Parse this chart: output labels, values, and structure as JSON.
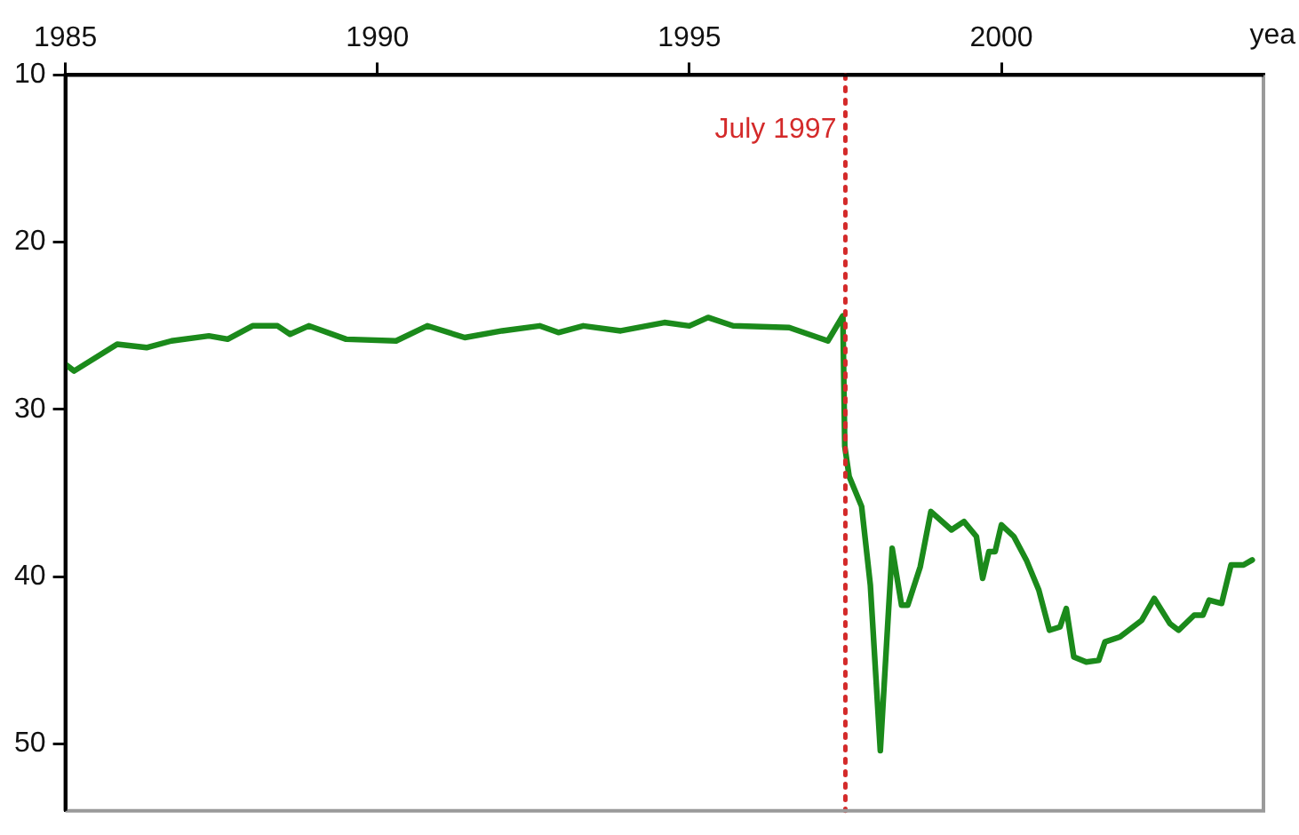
{
  "chart_data": {
    "type": "line",
    "xlabel": "yea",
    "xlim": [
      1985,
      2004.2
    ],
    "xticks": [
      1985,
      1990,
      1995,
      2000
    ],
    "ylim": [
      54,
      10
    ],
    "yticks": [
      10,
      20,
      30,
      40,
      50
    ],
    "grid": false,
    "legend": false,
    "marker": "none",
    "line_style": "solid",
    "tick_labels": "xy",
    "ref_lines": [
      {
        "axis": "x",
        "value": 1997.5,
        "label": "July 1997",
        "color": "#d42a2a",
        "line_style": "dotted"
      }
    ],
    "series": [
      {
        "color": "#1b8a1b",
        "x": [
          1985.0,
          1985.14,
          1985.83,
          1986.3,
          1986.7,
          1987.3,
          1987.6,
          1988.0,
          1988.4,
          1988.6,
          1988.9,
          1989.5,
          1990.3,
          1990.8,
          1991.4,
          1992.0,
          1992.6,
          1992.9,
          1993.3,
          1993.9,
          1994.6,
          1995.0,
          1995.3,
          1995.7,
          1996.6,
          1997.22,
          1997.46,
          1997.49,
          1997.56,
          1997.76,
          1997.9,
          1998.06,
          1998.25,
          1998.4,
          1998.5,
          1998.7,
          1998.87,
          1999.2,
          1999.4,
          1999.6,
          1999.7,
          1999.8,
          1999.9,
          2000.0,
          2000.2,
          2000.4,
          2000.6,
          2000.77,
          2000.94,
          2001.04,
          2001.16,
          2001.36,
          2001.56,
          2001.66,
          2001.9,
          2002.25,
          2002.45,
          2002.7,
          2002.84,
          2003.09,
          2003.23,
          2003.33,
          2003.53,
          2003.68,
          2003.88,
          2004.02
        ],
        "values": [
          27.3,
          27.7,
          26.1,
          26.3,
          25.9,
          25.6,
          25.8,
          25.0,
          25.0,
          25.5,
          25.0,
          25.8,
          25.9,
          25.0,
          25.7,
          25.3,
          25.0,
          25.4,
          25.0,
          25.3,
          24.8,
          25.0,
          24.5,
          25.0,
          25.1,
          25.9,
          24.4,
          32.2,
          34.0,
          35.8,
          40.5,
          50.4,
          38.3,
          41.7,
          41.7,
          39.4,
          36.1,
          37.2,
          36.7,
          37.6,
          40.1,
          38.5,
          38.5,
          36.9,
          37.6,
          39.0,
          40.8,
          43.2,
          43.0,
          41.9,
          44.8,
          45.1,
          45.0,
          43.9,
          43.6,
          42.6,
          41.3,
          42.8,
          43.2,
          42.3,
          42.3,
          41.4,
          41.6,
          39.3,
          39.3,
          39.0
        ]
      }
    ]
  }
}
